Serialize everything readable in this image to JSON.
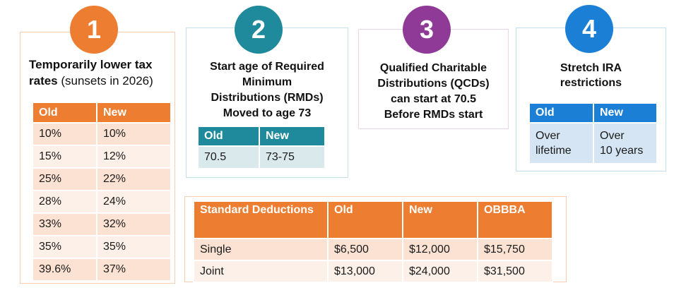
{
  "colors": {
    "orange": "#ed7d31",
    "orange_row_dark": "#fbe2d3",
    "orange_row_light": "#fdf0e8",
    "teal": "#1f8a9b",
    "teal_row": "#d9e9ec",
    "purple": "#8f3a97",
    "blue": "#1b7fd6",
    "blue_row": "#d6e5f4"
  },
  "panels": [
    {
      "badge": "1",
      "title": "Temporarily lower tax rates",
      "title_note": " (sunsets in 2026)",
      "table": {
        "headers": [
          "Old",
          "New"
        ],
        "rows": [
          [
            "10%",
            "10%"
          ],
          [
            "15%",
            "12%"
          ],
          [
            "25%",
            "22%"
          ],
          [
            "28%",
            "24%"
          ],
          [
            "33%",
            "32%"
          ],
          [
            "35%",
            "35%"
          ],
          [
            "39.6%",
            "37%"
          ]
        ]
      }
    },
    {
      "badge": "2",
      "title": "Start age of Required\nMinimum\nDistributions (RMDs)\nMoved to age 73",
      "table": {
        "headers": [
          "Old",
          "New"
        ],
        "rows": [
          [
            "70.5",
            "73-75"
          ]
        ]
      }
    },
    {
      "badge": "3",
      "title": "Qualified Charitable\nDistributions (QCDs)\ncan start at 70.5\nBefore RMDs start"
    },
    {
      "badge": "4",
      "title": "Stretch IRA\nrestrictions",
      "table": {
        "headers": [
          "Old",
          "New"
        ],
        "rows": [
          [
            "Over\nlifetime",
            "Over\n10 years"
          ]
        ]
      }
    }
  ],
  "deductions_table": {
    "headers": [
      "Standard Deductions",
      "Old",
      "New",
      "OBBBA"
    ],
    "rows": [
      [
        "Single",
        "$6,500",
        "$12,000",
        "$15,750"
      ],
      [
        "Joint",
        "$13,000",
        "$24,000",
        "$31,500"
      ]
    ]
  }
}
